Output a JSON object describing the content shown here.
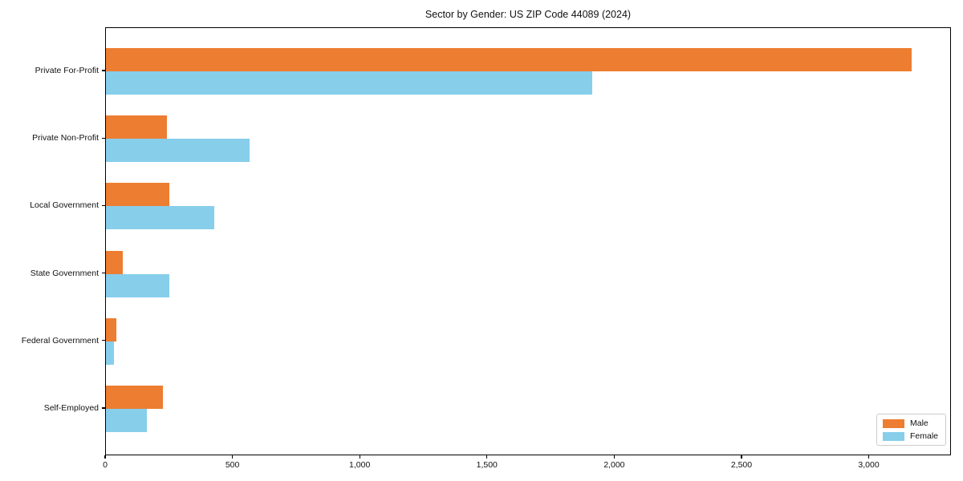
{
  "title": "Sector by Gender: US ZIP Code 44089 (2024)",
  "chart_data": {
    "type": "bar",
    "orientation": "horizontal",
    "title": "Sector by Gender: US ZIP Code 44089 (2024)",
    "xlabel": "",
    "ylabel": "",
    "categories": [
      "Private For-Profit",
      "Private Non-Profit",
      "Local Government",
      "State Government",
      "Federal Government",
      "Self-Employed"
    ],
    "series": [
      {
        "name": "Male",
        "color": "#ED7D31",
        "values": [
          3165,
          240,
          250,
          65,
          40,
          225
        ]
      },
      {
        "name": "Female",
        "color": "#87CEEB",
        "values": [
          1910,
          565,
          425,
          250,
          30,
          160
        ]
      }
    ],
    "xlim": [
      0,
      3323
    ],
    "xticks": [
      0,
      500,
      1000,
      1500,
      2000,
      2500,
      3000
    ],
    "xtick_labels": [
      "0",
      "500",
      "1,000",
      "1,500",
      "2,000",
      "2,500",
      "3,000"
    ],
    "grid": false,
    "legend_position": "lower right",
    "legend_entries": [
      "Male",
      "Female"
    ]
  }
}
